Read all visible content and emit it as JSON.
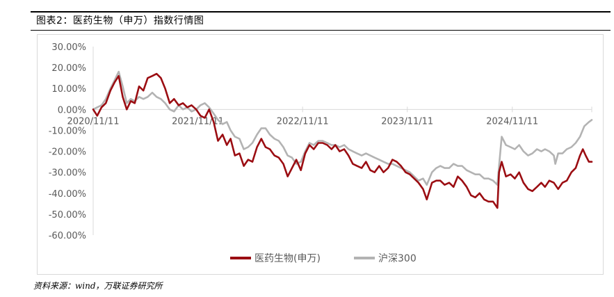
{
  "figure": {
    "title": "图表2：医药生物（申万）指数行情图",
    "source": "资料来源：wind，万联证券研究所"
  },
  "colors": {
    "series1": "#9b0d12",
    "series2": "#b3b3b3",
    "axis_text": "#595959",
    "axis_line": "#d9d9d9"
  },
  "chart_data": {
    "type": "line",
    "title": "",
    "xlabel": "",
    "ylabel": "",
    "ylim": [
      -0.6,
      0.3
    ],
    "xlim": [
      "2020-11-11",
      "2025-08-15"
    ],
    "x_ticks": [
      "2020/11/11",
      "2021/11/11",
      "2022/11/11",
      "2023/11/11",
      "2024/11/11"
    ],
    "x_tick_dates": [
      "2020-11-11",
      "2021-11-11",
      "2022-11-11",
      "2023-11-11",
      "2024-11-11"
    ],
    "y_ticks": [
      0.3,
      0.2,
      0.1,
      0.0,
      -0.1,
      -0.2,
      -0.3,
      -0.4,
      -0.5,
      -0.6
    ],
    "y_tick_labels": [
      "30.00%",
      "20.00%",
      "10.00%",
      "0.00%",
      "-10.00%",
      "-20.00%",
      "-30.00%",
      "-40.00%",
      "-50.00%",
      "-60.00%"
    ],
    "grid": false,
    "legend_position": "bottom",
    "series": [
      {
        "name": "医药生物(申万)",
        "points": [
          [
            "2020-11-11",
            0.0
          ],
          [
            "2020-11-25",
            -0.03
          ],
          [
            "2020-12-10",
            0.01
          ],
          [
            "2020-12-25",
            0.03
          ],
          [
            "2021-01-10",
            0.09
          ],
          [
            "2021-01-25",
            0.13
          ],
          [
            "2021-02-08",
            0.16
          ],
          [
            "2021-02-22",
            0.06
          ],
          [
            "2021-03-08",
            0.0
          ],
          [
            "2021-03-22",
            0.04
          ],
          [
            "2021-04-05",
            0.03
          ],
          [
            "2021-04-20",
            0.11
          ],
          [
            "2021-05-05",
            0.09
          ],
          [
            "2021-05-20",
            0.15
          ],
          [
            "2021-06-05",
            0.16
          ],
          [
            "2021-06-20",
            0.17
          ],
          [
            "2021-07-05",
            0.15
          ],
          [
            "2021-07-20",
            0.1
          ],
          [
            "2021-08-05",
            0.03
          ],
          [
            "2021-08-20",
            0.05
          ],
          [
            "2021-09-05",
            0.02
          ],
          [
            "2021-09-20",
            0.03
          ],
          [
            "2021-10-05",
            0.01
          ],
          [
            "2021-10-20",
            0.02
          ],
          [
            "2021-11-05",
            0.0
          ],
          [
            "2021-11-20",
            -0.03
          ],
          [
            "2021-12-05",
            -0.04
          ],
          [
            "2021-12-20",
            0.0
          ],
          [
            "2022-01-05",
            -0.06
          ],
          [
            "2022-01-20",
            -0.15
          ],
          [
            "2022-02-05",
            -0.12
          ],
          [
            "2022-02-20",
            -0.17
          ],
          [
            "2022-03-05",
            -0.14
          ],
          [
            "2022-03-20",
            -0.22
          ],
          [
            "2022-04-05",
            -0.21
          ],
          [
            "2022-04-20",
            -0.27
          ],
          [
            "2022-05-05",
            -0.24
          ],
          [
            "2022-05-20",
            -0.25
          ],
          [
            "2022-06-05",
            -0.18
          ],
          [
            "2022-06-20",
            -0.14
          ],
          [
            "2022-07-05",
            -0.18
          ],
          [
            "2022-07-20",
            -0.19
          ],
          [
            "2022-08-05",
            -0.22
          ],
          [
            "2022-08-20",
            -0.23
          ],
          [
            "2022-09-05",
            -0.26
          ],
          [
            "2022-09-20",
            -0.32
          ],
          [
            "2022-10-05",
            -0.28
          ],
          [
            "2022-10-20",
            -0.24
          ],
          [
            "2022-11-05",
            -0.29
          ],
          [
            "2022-11-20",
            -0.21
          ],
          [
            "2022-12-05",
            -0.17
          ],
          [
            "2022-12-20",
            -0.19
          ],
          [
            "2023-01-05",
            -0.16
          ],
          [
            "2023-01-20",
            -0.16
          ],
          [
            "2023-02-05",
            -0.17
          ],
          [
            "2023-02-20",
            -0.19
          ],
          [
            "2023-03-05",
            -0.17
          ],
          [
            "2023-03-20",
            -0.2
          ],
          [
            "2023-04-05",
            -0.19
          ],
          [
            "2023-04-20",
            -0.22
          ],
          [
            "2023-05-05",
            -0.26
          ],
          [
            "2023-05-20",
            -0.27
          ],
          [
            "2023-06-05",
            -0.28
          ],
          [
            "2023-06-20",
            -0.25
          ],
          [
            "2023-07-05",
            -0.29
          ],
          [
            "2023-07-20",
            -0.3
          ],
          [
            "2023-08-05",
            -0.27
          ],
          [
            "2023-08-20",
            -0.3
          ],
          [
            "2023-09-05",
            -0.28
          ],
          [
            "2023-09-20",
            -0.24
          ],
          [
            "2023-10-05",
            -0.25
          ],
          [
            "2023-10-20",
            -0.27
          ],
          [
            "2023-11-05",
            -0.3
          ],
          [
            "2023-11-20",
            -0.31
          ],
          [
            "2023-12-05",
            -0.33
          ],
          [
            "2023-12-20",
            -0.35
          ],
          [
            "2024-01-05",
            -0.38
          ],
          [
            "2024-01-18",
            -0.43
          ],
          [
            "2024-02-05",
            -0.35
          ],
          [
            "2024-02-20",
            -0.34
          ],
          [
            "2024-03-05",
            -0.34
          ],
          [
            "2024-03-20",
            -0.36
          ],
          [
            "2024-04-05",
            -0.35
          ],
          [
            "2024-04-20",
            -0.37
          ],
          [
            "2024-05-05",
            -0.32
          ],
          [
            "2024-05-20",
            -0.34
          ],
          [
            "2024-06-05",
            -0.37
          ],
          [
            "2024-06-20",
            -0.41
          ],
          [
            "2024-07-05",
            -0.42
          ],
          [
            "2024-07-20",
            -0.4
          ],
          [
            "2024-08-05",
            -0.43
          ],
          [
            "2024-08-20",
            -0.44
          ],
          [
            "2024-09-05",
            -0.44
          ],
          [
            "2024-09-20",
            -0.47
          ],
          [
            "2024-09-26",
            -0.3
          ],
          [
            "2024-10-05",
            -0.25
          ],
          [
            "2024-10-20",
            -0.32
          ],
          [
            "2024-11-05",
            -0.31
          ],
          [
            "2024-11-20",
            -0.33
          ],
          [
            "2024-12-05",
            -0.3
          ],
          [
            "2024-12-20",
            -0.35
          ],
          [
            "2025-01-05",
            -0.38
          ],
          [
            "2025-01-20",
            -0.39
          ],
          [
            "2025-02-05",
            -0.37
          ],
          [
            "2025-02-20",
            -0.35
          ],
          [
            "2025-03-05",
            -0.37
          ],
          [
            "2025-03-20",
            -0.34
          ],
          [
            "2025-04-05",
            -0.35
          ],
          [
            "2025-04-20",
            -0.38
          ],
          [
            "2025-05-05",
            -0.35
          ],
          [
            "2025-05-20",
            -0.34
          ],
          [
            "2025-06-05",
            -0.3
          ],
          [
            "2025-06-20",
            -0.28
          ],
          [
            "2025-07-05",
            -0.22
          ],
          [
            "2025-07-15",
            -0.19
          ],
          [
            "2025-07-25",
            -0.22
          ],
          [
            "2025-08-05",
            -0.25
          ],
          [
            "2025-08-15",
            -0.25
          ]
        ]
      },
      {
        "name": "沪深300",
        "points": [
          [
            "2020-11-11",
            0.0
          ],
          [
            "2020-11-25",
            0.01
          ],
          [
            "2020-12-10",
            0.02
          ],
          [
            "2020-12-25",
            0.05
          ],
          [
            "2021-01-10",
            0.1
          ],
          [
            "2021-01-25",
            0.14
          ],
          [
            "2021-02-08",
            0.18
          ],
          [
            "2021-02-22",
            0.11
          ],
          [
            "2021-03-08",
            0.03
          ],
          [
            "2021-03-22",
            0.05
          ],
          [
            "2021-04-05",
            0.04
          ],
          [
            "2021-04-20",
            0.06
          ],
          [
            "2021-05-05",
            0.05
          ],
          [
            "2021-05-20",
            0.06
          ],
          [
            "2021-06-05",
            0.08
          ],
          [
            "2021-06-20",
            0.06
          ],
          [
            "2021-07-05",
            0.05
          ],
          [
            "2021-07-20",
            0.03
          ],
          [
            "2021-08-05",
            0.0
          ],
          [
            "2021-08-20",
            -0.01
          ],
          [
            "2021-09-05",
            0.02
          ],
          [
            "2021-09-20",
            0.0
          ],
          [
            "2021-10-05",
            0.01
          ],
          [
            "2021-10-20",
            -0.01
          ],
          [
            "2021-11-05",
            0.0
          ],
          [
            "2021-11-20",
            0.02
          ],
          [
            "2021-12-05",
            0.03
          ],
          [
            "2021-12-20",
            0.01
          ],
          [
            "2022-01-05",
            -0.02
          ],
          [
            "2022-01-20",
            -0.05
          ],
          [
            "2022-02-05",
            -0.07
          ],
          [
            "2022-02-20",
            -0.06
          ],
          [
            "2022-03-05",
            -0.1
          ],
          [
            "2022-03-20",
            -0.13
          ],
          [
            "2022-04-05",
            -0.14
          ],
          [
            "2022-04-20",
            -0.19
          ],
          [
            "2022-05-05",
            -0.18
          ],
          [
            "2022-05-20",
            -0.16
          ],
          [
            "2022-06-05",
            -0.12
          ],
          [
            "2022-06-20",
            -0.09
          ],
          [
            "2022-07-05",
            -0.09
          ],
          [
            "2022-07-20",
            -0.12
          ],
          [
            "2022-08-05",
            -0.14
          ],
          [
            "2022-08-20",
            -0.15
          ],
          [
            "2022-09-05",
            -0.18
          ],
          [
            "2022-09-20",
            -0.22
          ],
          [
            "2022-10-05",
            -0.23
          ],
          [
            "2022-10-20",
            -0.26
          ],
          [
            "2022-11-05",
            -0.25
          ],
          [
            "2022-11-20",
            -0.2
          ],
          [
            "2022-12-05",
            -0.16
          ],
          [
            "2022-12-20",
            -0.17
          ],
          [
            "2023-01-05",
            -0.15
          ],
          [
            "2023-01-20",
            -0.15
          ],
          [
            "2023-02-05",
            -0.16
          ],
          [
            "2023-02-20",
            -0.17
          ],
          [
            "2023-03-05",
            -0.17
          ],
          [
            "2023-03-20",
            -0.18
          ],
          [
            "2023-04-05",
            -0.17
          ],
          [
            "2023-04-20",
            -0.19
          ],
          [
            "2023-05-05",
            -0.2
          ],
          [
            "2023-05-20",
            -0.21
          ],
          [
            "2023-06-05",
            -0.22
          ],
          [
            "2023-06-20",
            -0.21
          ],
          [
            "2023-07-05",
            -0.22
          ],
          [
            "2023-07-20",
            -0.23
          ],
          [
            "2023-08-05",
            -0.24
          ],
          [
            "2023-08-20",
            -0.25
          ],
          [
            "2023-09-05",
            -0.26
          ],
          [
            "2023-09-20",
            -0.26
          ],
          [
            "2023-10-05",
            -0.27
          ],
          [
            "2023-10-20",
            -0.28
          ],
          [
            "2023-11-05",
            -0.29
          ],
          [
            "2023-11-20",
            -0.3
          ],
          [
            "2023-12-05",
            -0.32
          ],
          [
            "2023-12-20",
            -0.34
          ],
          [
            "2024-01-05",
            -0.33
          ],
          [
            "2024-01-18",
            -0.36
          ],
          [
            "2024-02-05",
            -0.3
          ],
          [
            "2024-02-20",
            -0.28
          ],
          [
            "2024-03-05",
            -0.27
          ],
          [
            "2024-03-20",
            -0.28
          ],
          [
            "2024-04-05",
            -0.28
          ],
          [
            "2024-04-20",
            -0.26
          ],
          [
            "2024-05-05",
            -0.27
          ],
          [
            "2024-05-20",
            -0.27
          ],
          [
            "2024-06-05",
            -0.29
          ],
          [
            "2024-06-20",
            -0.3
          ],
          [
            "2024-07-05",
            -0.31
          ],
          [
            "2024-07-20",
            -0.31
          ],
          [
            "2024-08-05",
            -0.33
          ],
          [
            "2024-08-20",
            -0.33
          ],
          [
            "2024-09-05",
            -0.34
          ],
          [
            "2024-09-20",
            -0.36
          ],
          [
            "2024-09-26",
            -0.27
          ],
          [
            "2024-10-05",
            -0.13
          ],
          [
            "2024-10-20",
            -0.17
          ],
          [
            "2024-11-05",
            -0.18
          ],
          [
            "2024-11-20",
            -0.19
          ],
          [
            "2024-12-05",
            -0.17
          ],
          [
            "2024-12-20",
            -0.2
          ],
          [
            "2025-01-05",
            -0.22
          ],
          [
            "2025-01-20",
            -0.21
          ],
          [
            "2025-02-05",
            -0.19
          ],
          [
            "2025-02-20",
            -0.2
          ],
          [
            "2025-03-05",
            -0.19
          ],
          [
            "2025-03-20",
            -0.2
          ],
          [
            "2025-04-05",
            -0.22
          ],
          [
            "2025-04-10",
            -0.26
          ],
          [
            "2025-04-20",
            -0.21
          ],
          [
            "2025-05-05",
            -0.21
          ],
          [
            "2025-05-20",
            -0.19
          ],
          [
            "2025-06-05",
            -0.18
          ],
          [
            "2025-06-20",
            -0.16
          ],
          [
            "2025-07-05",
            -0.13
          ],
          [
            "2025-07-20",
            -0.08
          ],
          [
            "2025-08-05",
            -0.06
          ],
          [
            "2025-08-15",
            -0.05
          ]
        ]
      }
    ]
  }
}
